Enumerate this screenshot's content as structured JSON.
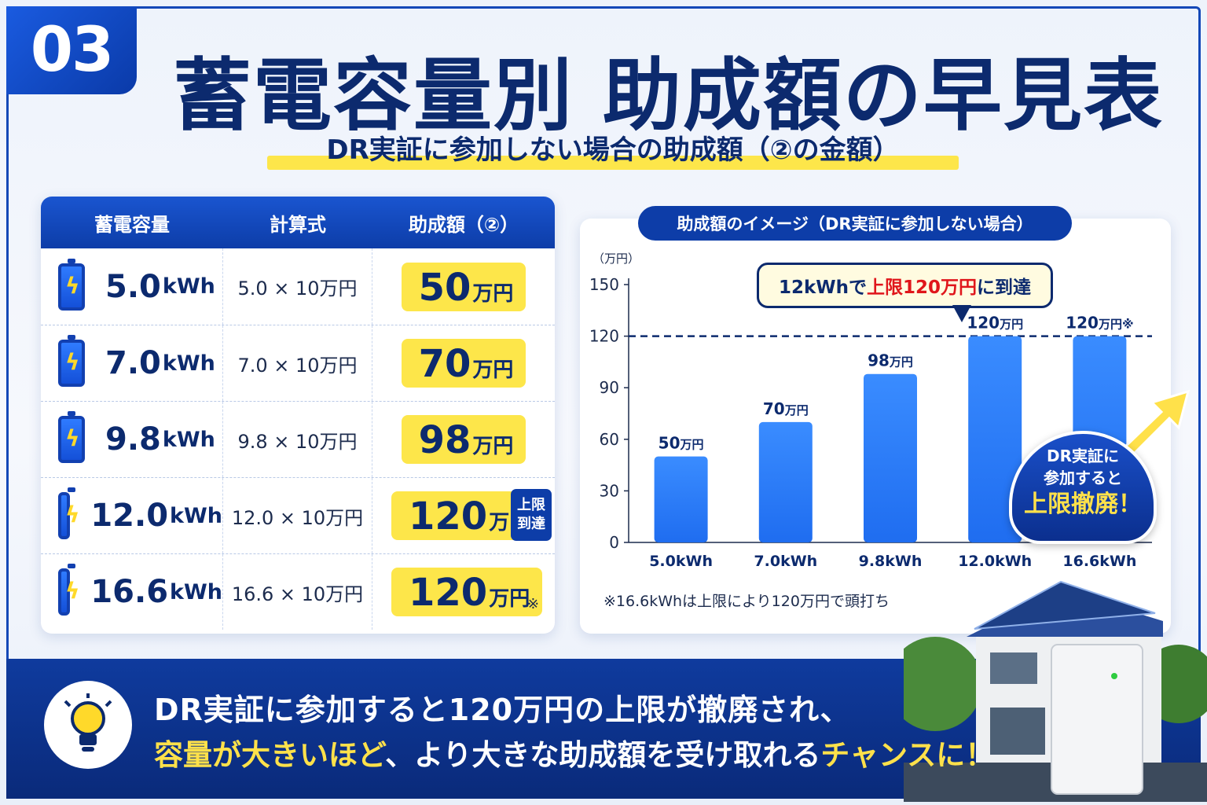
{
  "badge": "03",
  "title": "蓄電容量別 助成額の早見表",
  "subtitle": "DR実証に参加しない場合の助成額（②の金額）",
  "table": {
    "headers": [
      "蓄電容量",
      "計算式",
      "助成額（②）"
    ],
    "rows": [
      {
        "cap": "5.0",
        "unit": "kWh",
        "formula": "5.0 × 10万円",
        "amount": "50",
        "amount_unit": "万円"
      },
      {
        "cap": "7.0",
        "unit": "kWh",
        "formula": "7.0 × 10万円",
        "amount": "70",
        "amount_unit": "万円"
      },
      {
        "cap": "9.8",
        "unit": "kWh",
        "formula": "9.8 × 10万円",
        "amount": "98",
        "amount_unit": "万円"
      },
      {
        "cap": "12.0",
        "unit": "kWh",
        "formula": "12.0 × 10万円",
        "amount": "120",
        "amount_unit": "万円"
      },
      {
        "cap": "16.6",
        "unit": "kWh",
        "formula": "16.6 × 10万円",
        "amount": "120",
        "amount_unit": "万円"
      }
    ],
    "limit_tag_line1": "上限",
    "limit_tag_line2": "到達",
    "note_mark": "※"
  },
  "chart_pill": "助成額のイメージ（DR実証に参加しない場合）",
  "callout": {
    "pre": "12kWhで",
    "red": "上限120万円",
    "post": "に到達"
  },
  "chart_note": "※16.6kWhは上限により120万円で頭打ち",
  "dr_circle": {
    "line1": "DR実証に",
    "line2": "参加すると",
    "big": "上限撤廃！"
  },
  "chart_data": {
    "type": "bar",
    "ylabel": "（万円）",
    "categories": [
      "5.0kWh",
      "7.0kWh",
      "9.8kWh",
      "12.0kWh",
      "16.6kWh"
    ],
    "values": [
      50,
      70,
      98,
      120,
      120
    ],
    "value_labels": [
      "50",
      "70",
      "98",
      "120",
      "120"
    ],
    "value_unit": "万円",
    "last_label_suffix": "※",
    "ylim": [
      0,
      150
    ],
    "yticks": [
      0,
      30,
      60,
      90,
      120,
      150
    ],
    "reference_line": 120,
    "bar_color": "#1f6df0"
  },
  "banner": {
    "line1": "DR実証に参加すると120万円の上限が撤廃され、",
    "line2_y1": "容量が大きいほど",
    "line2_w": "、より大きな助成額を受け取れる",
    "line2_y2": "チャンスに！"
  }
}
